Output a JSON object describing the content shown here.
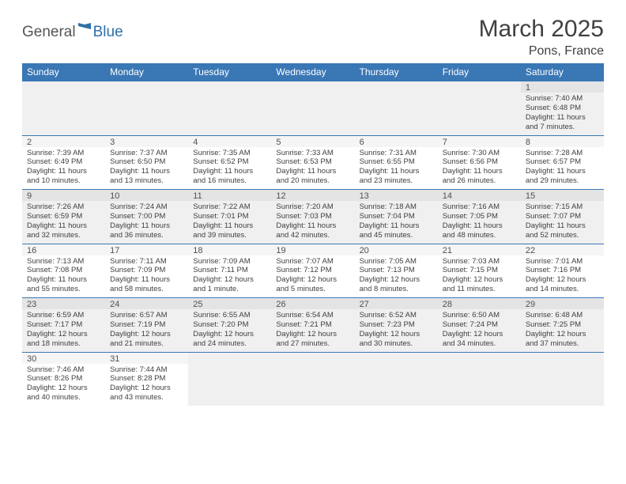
{
  "brand": {
    "general": "General",
    "blue": "Blue"
  },
  "title": "March 2025",
  "location": "Pons, France",
  "colors": {
    "header_bg": "#3a77b5",
    "header_text": "#ffffff",
    "row_alt_bg": "#f0f0f0",
    "daynum_bg_even": "#e4e4e4",
    "daynum_bg_odd": "#f5f5f5",
    "border": "#3a77b5",
    "text": "#404040",
    "brand_blue": "#2f6fa8"
  },
  "weekdays": [
    "Sunday",
    "Monday",
    "Tuesday",
    "Wednesday",
    "Thursday",
    "Friday",
    "Saturday"
  ],
  "weeks": [
    [
      {
        "empty": true
      },
      {
        "empty": true
      },
      {
        "empty": true
      },
      {
        "empty": true
      },
      {
        "empty": true
      },
      {
        "empty": true
      },
      {
        "n": "1",
        "sunrise": "7:40 AM",
        "sunset": "6:48 PM",
        "daylight": "11 hours and 7 minutes."
      }
    ],
    [
      {
        "n": "2",
        "sunrise": "7:39 AM",
        "sunset": "6:49 PM",
        "daylight": "11 hours and 10 minutes."
      },
      {
        "n": "3",
        "sunrise": "7:37 AM",
        "sunset": "6:50 PM",
        "daylight": "11 hours and 13 minutes."
      },
      {
        "n": "4",
        "sunrise": "7:35 AM",
        "sunset": "6:52 PM",
        "daylight": "11 hours and 16 minutes."
      },
      {
        "n": "5",
        "sunrise": "7:33 AM",
        "sunset": "6:53 PM",
        "daylight": "11 hours and 20 minutes."
      },
      {
        "n": "6",
        "sunrise": "7:31 AM",
        "sunset": "6:55 PM",
        "daylight": "11 hours and 23 minutes."
      },
      {
        "n": "7",
        "sunrise": "7:30 AM",
        "sunset": "6:56 PM",
        "daylight": "11 hours and 26 minutes."
      },
      {
        "n": "8",
        "sunrise": "7:28 AM",
        "sunset": "6:57 PM",
        "daylight": "11 hours and 29 minutes."
      }
    ],
    [
      {
        "n": "9",
        "sunrise": "7:26 AM",
        "sunset": "6:59 PM",
        "daylight": "11 hours and 32 minutes."
      },
      {
        "n": "10",
        "sunrise": "7:24 AM",
        "sunset": "7:00 PM",
        "daylight": "11 hours and 36 minutes."
      },
      {
        "n": "11",
        "sunrise": "7:22 AM",
        "sunset": "7:01 PM",
        "daylight": "11 hours and 39 minutes."
      },
      {
        "n": "12",
        "sunrise": "7:20 AM",
        "sunset": "7:03 PM",
        "daylight": "11 hours and 42 minutes."
      },
      {
        "n": "13",
        "sunrise": "7:18 AM",
        "sunset": "7:04 PM",
        "daylight": "11 hours and 45 minutes."
      },
      {
        "n": "14",
        "sunrise": "7:16 AM",
        "sunset": "7:05 PM",
        "daylight": "11 hours and 48 minutes."
      },
      {
        "n": "15",
        "sunrise": "7:15 AM",
        "sunset": "7:07 PM",
        "daylight": "11 hours and 52 minutes."
      }
    ],
    [
      {
        "n": "16",
        "sunrise": "7:13 AM",
        "sunset": "7:08 PM",
        "daylight": "11 hours and 55 minutes."
      },
      {
        "n": "17",
        "sunrise": "7:11 AM",
        "sunset": "7:09 PM",
        "daylight": "11 hours and 58 minutes."
      },
      {
        "n": "18",
        "sunrise": "7:09 AM",
        "sunset": "7:11 PM",
        "daylight": "12 hours and 1 minute."
      },
      {
        "n": "19",
        "sunrise": "7:07 AM",
        "sunset": "7:12 PM",
        "daylight": "12 hours and 5 minutes."
      },
      {
        "n": "20",
        "sunrise": "7:05 AM",
        "sunset": "7:13 PM",
        "daylight": "12 hours and 8 minutes."
      },
      {
        "n": "21",
        "sunrise": "7:03 AM",
        "sunset": "7:15 PM",
        "daylight": "12 hours and 11 minutes."
      },
      {
        "n": "22",
        "sunrise": "7:01 AM",
        "sunset": "7:16 PM",
        "daylight": "12 hours and 14 minutes."
      }
    ],
    [
      {
        "n": "23",
        "sunrise": "6:59 AM",
        "sunset": "7:17 PM",
        "daylight": "12 hours and 18 minutes."
      },
      {
        "n": "24",
        "sunrise": "6:57 AM",
        "sunset": "7:19 PM",
        "daylight": "12 hours and 21 minutes."
      },
      {
        "n": "25",
        "sunrise": "6:55 AM",
        "sunset": "7:20 PM",
        "daylight": "12 hours and 24 minutes."
      },
      {
        "n": "26",
        "sunrise": "6:54 AM",
        "sunset": "7:21 PM",
        "daylight": "12 hours and 27 minutes."
      },
      {
        "n": "27",
        "sunrise": "6:52 AM",
        "sunset": "7:23 PM",
        "daylight": "12 hours and 30 minutes."
      },
      {
        "n": "28",
        "sunrise": "6:50 AM",
        "sunset": "7:24 PM",
        "daylight": "12 hours and 34 minutes."
      },
      {
        "n": "29",
        "sunrise": "6:48 AM",
        "sunset": "7:25 PM",
        "daylight": "12 hours and 37 minutes."
      }
    ],
    [
      {
        "n": "30",
        "sunrise": "7:46 AM",
        "sunset": "8:26 PM",
        "daylight": "12 hours and 40 minutes."
      },
      {
        "n": "31",
        "sunrise": "7:44 AM",
        "sunset": "8:28 PM",
        "daylight": "12 hours and 43 minutes."
      },
      {
        "empty": true
      },
      {
        "empty": true
      },
      {
        "empty": true
      },
      {
        "empty": true
      },
      {
        "empty": true
      }
    ]
  ],
  "labels": {
    "sunrise": "Sunrise:",
    "sunset": "Sunset:",
    "daylight": "Daylight:"
  }
}
